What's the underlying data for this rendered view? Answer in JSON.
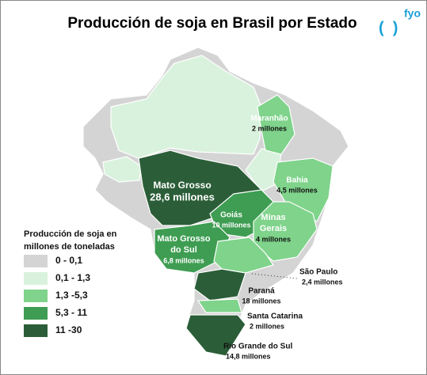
{
  "header": {
    "title": "Producción de soja en Brasil por Estado",
    "logo": "fyo"
  },
  "legend": {
    "title_lines": [
      "Producción de soja en",
      "millones de toneladas"
    ],
    "items": [
      {
        "label": "0 - 0,1",
        "color": "#d4d4d4"
      },
      {
        "label": "0,1 - 1,3",
        "color": "#d9f2dd"
      },
      {
        "label": "1,3 -5,3",
        "color": "#7fd38b"
      },
      {
        "label": "5,3 - 11",
        "color": "#3e9d52"
      },
      {
        "label": "11 -30",
        "color": "#2b5e38"
      }
    ]
  },
  "states": [
    {
      "name_lines": [
        "Mato Grosso"
      ],
      "value": "28,6 millones",
      "color": "#2b5e38"
    },
    {
      "name_lines": [
        "Goiás"
      ],
      "value": "10 millones",
      "color": "#3e9d52"
    },
    {
      "name_lines": [
        "Mato Grosso",
        "do Sul"
      ],
      "value": "6,8 millones",
      "color": "#3e9d52"
    },
    {
      "name_lines": [
        "Maranhão"
      ],
      "value": "2 millones",
      "color": "#7fd38b"
    },
    {
      "name_lines": [
        "Bahia"
      ],
      "value": "4,5 millones",
      "color": "#7fd38b"
    },
    {
      "name_lines": [
        "Minas",
        "Gerais"
      ],
      "value": "4 millones",
      "color": "#7fd38b"
    },
    {
      "name_lines": [
        "São Paulo"
      ],
      "value": "2,4 millones",
      "color": "#7fd38b"
    },
    {
      "name_lines": [
        "Paraná"
      ],
      "value": "18 millones",
      "color": "#2b5e38"
    },
    {
      "name_lines": [
        "Santa Catarina"
      ],
      "value": "2 millones",
      "color": "#7fd38b"
    },
    {
      "name_lines": [
        "Rio Grande do Sul"
      ],
      "value": "14,8 millones",
      "color": "#2b5e38"
    }
  ]
}
